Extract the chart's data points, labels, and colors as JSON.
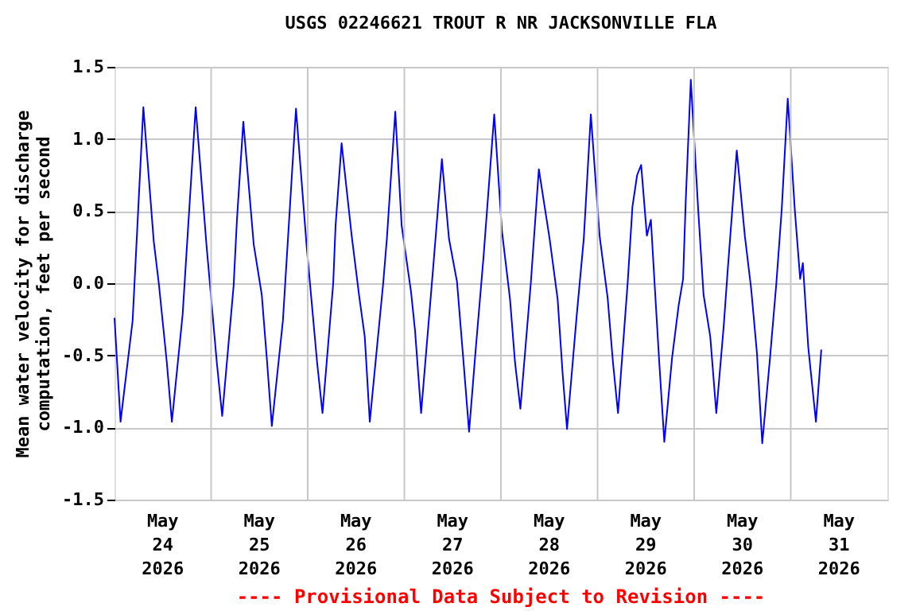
{
  "chart_data": {
    "type": "line",
    "title": "USGS 02246621 TROUT R NR JACKSONVILLE FLA",
    "ylabel": "Mean water velocity for discharge\ncomputation, feet per second",
    "annotations": [
      "---- Provisional Data Subject to Revision ----"
    ],
    "xlim": [
      "2026-05-24T00:00",
      "2026-06-01T00:00"
    ],
    "xticks": [
      {
        "value": "2026-05-24T12:00",
        "label": "May 24 2026"
      },
      {
        "value": "2026-05-25T12:00",
        "label": "May 25 2026"
      },
      {
        "value": "2026-05-26T12:00",
        "label": "May 26 2026"
      },
      {
        "value": "2026-05-27T12:00",
        "label": "May 27 2026"
      },
      {
        "value": "2026-05-28T12:00",
        "label": "May 28 2026"
      },
      {
        "value": "2026-05-29T12:00",
        "label": "May 29 2026"
      },
      {
        "value": "2026-05-30T12:00",
        "label": "May 30 2026"
      },
      {
        "value": "2026-05-31T12:00",
        "label": "May 31 2026"
      },
      {
        "value": "2026-05-25T00:00",
        "label": null
      },
      {
        "value": "2026-05-26T00:00",
        "label": null
      },
      {
        "value": "2026-05-27T00:00",
        "label": null
      },
      {
        "value": "2026-05-28T00:00",
        "label": null
      },
      {
        "value": "2026-05-29T00:00",
        "label": null
      },
      {
        "value": "2026-05-30T00:00",
        "label": null
      },
      {
        "value": "2026-05-31T00:00",
        "label": null
      }
    ],
    "ylim": [
      -1.5,
      1.5
    ],
    "yticks": [
      {
        "value": -1.5,
        "label": "-1.5"
      },
      {
        "value": -1,
        "label": "-1.0"
      },
      {
        "value": -0.5,
        "label": "-0.5"
      },
      {
        "value": 0,
        "label": "0.0"
      },
      {
        "value": 0.5,
        "label": "0.5"
      },
      {
        "value": 1,
        "label": "1.0"
      },
      {
        "value": 1.5,
        "label": "1.5"
      }
    ],
    "grid": true,
    "marker": "none",
    "line_style": "solid",
    "series": [
      {
        "color": "#0000ff",
        "x": [
          "2026-05-24T00:00",
          "2026-05-24T01:30",
          "2026-05-24T04:30",
          "2026-05-24T07:10",
          "2026-05-24T09:45",
          "2026-05-24T11:00",
          "2026-05-24T13:00",
          "2026-05-24T14:15",
          "2026-05-24T16:55",
          "2026-05-24T20:10",
          "2026-05-24T22:50",
          "2026-05-25T01:25",
          "2026-05-25T02:45",
          "2026-05-25T05:35",
          "2026-05-25T06:25",
          "2026-05-25T08:00",
          "2026-05-25T10:35",
          "2026-05-25T12:35",
          "2026-05-25T13:55",
          "2026-05-25T15:05",
          "2026-05-25T17:50",
          "2026-05-25T21:05",
          "2026-05-25T23:45",
          "2026-05-26T02:20",
          "2026-05-26T03:40",
          "2026-05-26T06:20",
          "2026-05-26T06:55",
          "2026-05-26T08:25",
          "2026-05-26T10:55",
          "2026-05-26T12:50",
          "2026-05-26T14:10",
          "2026-05-26T15:25",
          "2026-05-26T18:45",
          "2026-05-26T19:40",
          "2026-05-26T21:45",
          "2026-05-26T23:20",
          "2026-05-27T01:40",
          "2026-05-27T02:40",
          "2026-05-27T04:10",
          "2026-05-27T07:10",
          "2026-05-27T09:20",
          "2026-05-27T11:05",
          "2026-05-27T13:05",
          "2026-05-27T14:50",
          "2026-05-27T16:05",
          "2026-05-27T17:40",
          "2026-05-27T19:40",
          "2026-05-27T22:20",
          "2026-05-28T00:15",
          "2026-05-28T02:15",
          "2026-05-28T03:30",
          "2026-05-28T04:50",
          "2026-05-28T07:25",
          "2026-05-28T09:25",
          "2026-05-28T12:05",
          "2026-05-28T14:05",
          "2026-05-28T15:20",
          "2026-05-28T16:25",
          "2026-05-28T18:50",
          "2026-05-28T20:35",
          "2026-05-28T22:20",
          "2026-05-29T00:30",
          "2026-05-29T02:30",
          "2026-05-29T03:50",
          "2026-05-29T05:05",
          "2026-05-29T07:30",
          "2026-05-29T08:40",
          "2026-05-29T09:50",
          "2026-05-29T10:50",
          "2026-05-29T12:15",
          "2026-05-29T13:15",
          "2026-05-29T14:15",
          "2026-05-29T15:20",
          "2026-05-29T16:35",
          "2026-05-29T18:30",
          "2026-05-29T20:10",
          "2026-05-29T21:15",
          "2026-05-29T21:55",
          "2026-05-29T23:10",
          "2026-05-30T01:00",
          "2026-05-30T02:20",
          "2026-05-30T04:00",
          "2026-05-30T05:30",
          "2026-05-30T07:20",
          "2026-05-30T08:20",
          "2026-05-30T10:35",
          "2026-05-30T12:35",
          "2026-05-30T14:10",
          "2026-05-30T15:35",
          "2026-05-30T16:55",
          "2026-05-30T18:50",
          "2026-05-30T20:25",
          "2026-05-30T21:45",
          "2026-05-30T23:15",
          "2026-05-31T01:00",
          "2026-05-31T02:20",
          "2026-05-31T03:00",
          "2026-05-31T04:20",
          "2026-05-31T06:15",
          "2026-05-31T07:35"
        ],
        "values": [
          -0.24,
          -0.96,
          -0.26,
          1.22,
          0.29,
          0,
          -0.55,
          -0.96,
          -0.22,
          1.22,
          0.27,
          -0.55,
          -0.92,
          -0.02,
          0.44,
          1.12,
          0.27,
          -0.08,
          -0.55,
          -0.99,
          -0.26,
          1.21,
          0.25,
          -0.55,
          -0.9,
          0,
          0.4,
          0.97,
          0.33,
          -0.1,
          -0.37,
          -0.96,
          0,
          0.31,
          1.19,
          0.4,
          -0.06,
          -0.33,
          -0.9,
          0.11,
          0.86,
          0.31,
          0.01,
          -0.59,
          -1.03,
          -0.48,
          0.18,
          1.17,
          0.36,
          -0.11,
          -0.55,
          -0.87,
          0,
          0.79,
          0.31,
          -0.11,
          -0.63,
          -1.01,
          -0.22,
          0.31,
          1.17,
          0.33,
          -0.1,
          -0.55,
          -0.9,
          0.01,
          0.53,
          0.75,
          0.82,
          0.33,
          0.44,
          -0.04,
          -0.55,
          -1.1,
          -0.52,
          -0.15,
          0.03,
          0.58,
          1.41,
          0.51,
          -0.08,
          -0.37,
          -0.9,
          -0.3,
          0.09,
          0.92,
          0.33,
          -0.04,
          -0.48,
          -1.11,
          -0.52,
          0,
          0.51,
          1.28,
          0.51,
          0.03,
          0.14,
          -0.44,
          -0.96,
          -0.46
        ]
      }
    ]
  }
}
